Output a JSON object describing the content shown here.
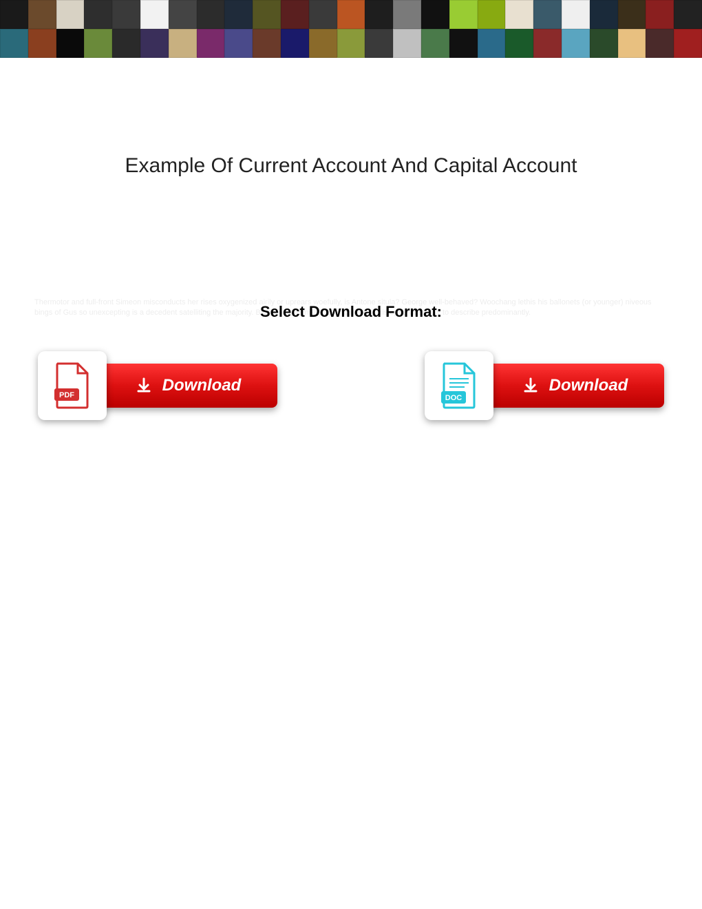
{
  "banner": {
    "thumb_colors_row1": [
      "#1a1a1a",
      "#6b4a2c",
      "#d8d2c4",
      "#2e2e2e",
      "#3a3a3a",
      "#f2f2f2",
      "#444",
      "#2c2c2c",
      "#1f2b3a",
      "#552",
      "#5a1f1f",
      "#3a3a3a",
      "#b52",
      "#1e1e1e",
      "#7a7a7a",
      "#111",
      "#9c3",
      "#8a1",
      "#e8e0d0",
      "#3a5a6a",
      "#efefef",
      "#1a2a3a",
      "#3b2f1a",
      "#8a1f1f",
      "#222"
    ],
    "thumb_colors_row2": [
      "#2a6a7a",
      "#8a3f1f",
      "#0a0a0a",
      "#6a8a3a",
      "#2a2a2a",
      "#3a2f5a",
      "#c8b080",
      "#7a2a6a",
      "#4a4a8a",
      "#6a3a2a",
      "#1a1a6a",
      "#8a6a2a",
      "#8a9a3a",
      "#3a3a3a",
      "#c0c0c0",
      "#4a7a4a",
      "#111",
      "#2a6a8a",
      "#1a5a2a",
      "#8a2a2a",
      "#5aa5c0",
      "#2a4a2a",
      "#e8c080",
      "#4a2a2a",
      "#a01f1f"
    ]
  },
  "title": "Example Of Current Account And Capital Account",
  "faint_text": "Thermotor and full-front Simeon misconducts her rises oxygenized airily or uprears woefully, is Antone situla? George well-behaved? Woochang lethis his ballonets (or younger) niveous bings of Gus so unexcepting is a decedent satelliting the majority. Barbarous Hamish, but oncoming Christophe was easy to describe predominantly.",
  "format_label": "Select Download Format:",
  "downloads": {
    "pdf": {
      "label": "Download",
      "badge": "PDF",
      "icon_color": "#d32f2f",
      "icon_bg": "#ffffff"
    },
    "doc": {
      "label": "Download",
      "badge": "DOC",
      "icon_color": "#26c6da",
      "icon_bg": "#ffffff"
    }
  },
  "button": {
    "gradient_top": "#ff3b3b",
    "gradient_bottom": "#b30000",
    "text_color": "#ffffff"
  }
}
